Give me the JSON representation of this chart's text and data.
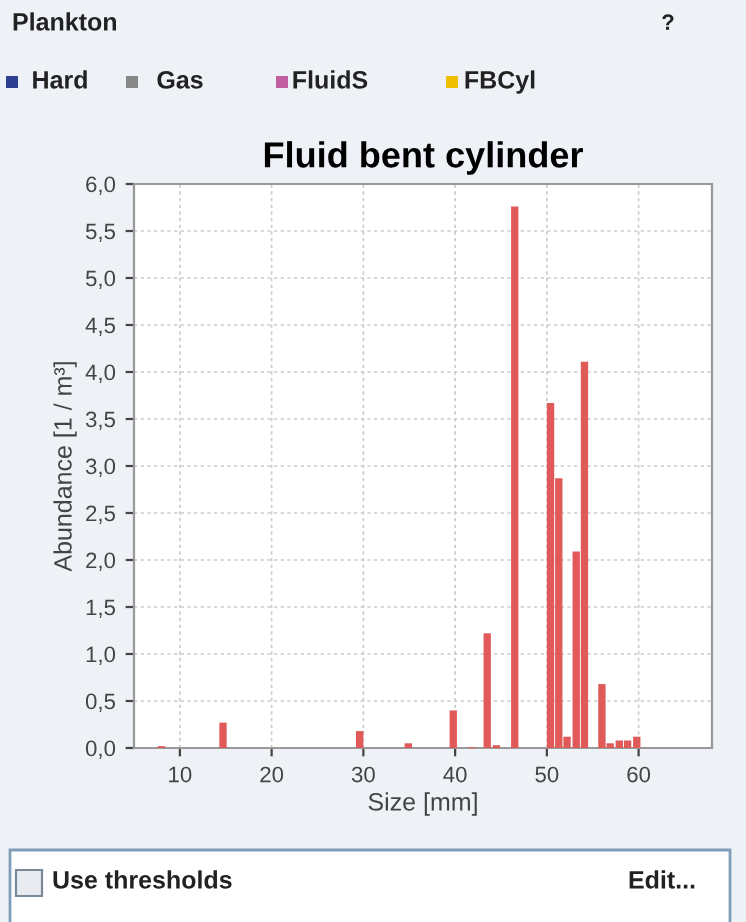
{
  "chart_data": {
    "type": "bar",
    "title": "Fluid bent cylinder",
    "xlabel": "Size [mm]",
    "ylabel": "Abundance [1 / m³]",
    "x": [
      8,
      14.7,
      29.6,
      34.9,
      39.8,
      41.8,
      43.5,
      44.5,
      46.5,
      50.4,
      51.3,
      52.2,
      53.2,
      54.1,
      56.0,
      56.9,
      57.9,
      58.8,
      59.8
    ],
    "values": [
      0.02,
      0.27,
      0.18,
      0.05,
      0.4,
      0.01,
      1.22,
      0.03,
      5.76,
      3.67,
      2.87,
      0.12,
      2.09,
      4.11,
      0.68,
      0.05,
      0.08,
      0.08,
      0.12
    ],
    "color": "#e05a5a",
    "xlim": [
      5,
      68
    ],
    "xticks": [
      10,
      20,
      30,
      40,
      50,
      60
    ],
    "ylim": [
      0,
      6
    ],
    "yticks": [
      {
        "value": 0,
        "label": "0,0"
      },
      {
        "value": 0.5,
        "label": "0,5"
      },
      {
        "value": 1,
        "label": "1,0"
      },
      {
        "value": 1.5,
        "label": "1,5"
      },
      {
        "value": 2,
        "label": "2,0"
      },
      {
        "value": 2.5,
        "label": "2,5"
      },
      {
        "value": 3,
        "label": "3,0"
      },
      {
        "value": 3.5,
        "label": "3,5"
      },
      {
        "value": 4,
        "label": "4,0"
      },
      {
        "value": 4.5,
        "label": "4,5"
      },
      {
        "value": 5,
        "label": "5,0"
      },
      {
        "value": 5.5,
        "label": "5,5"
      },
      {
        "value": 6,
        "label": "6,0"
      }
    ],
    "grid": true,
    "annotations": [
      "Plankton",
      "Hard",
      "Gas",
      "FluidS",
      "FBCyl",
      "Use thresholds",
      "Edit...",
      "?"
    ]
  }
}
